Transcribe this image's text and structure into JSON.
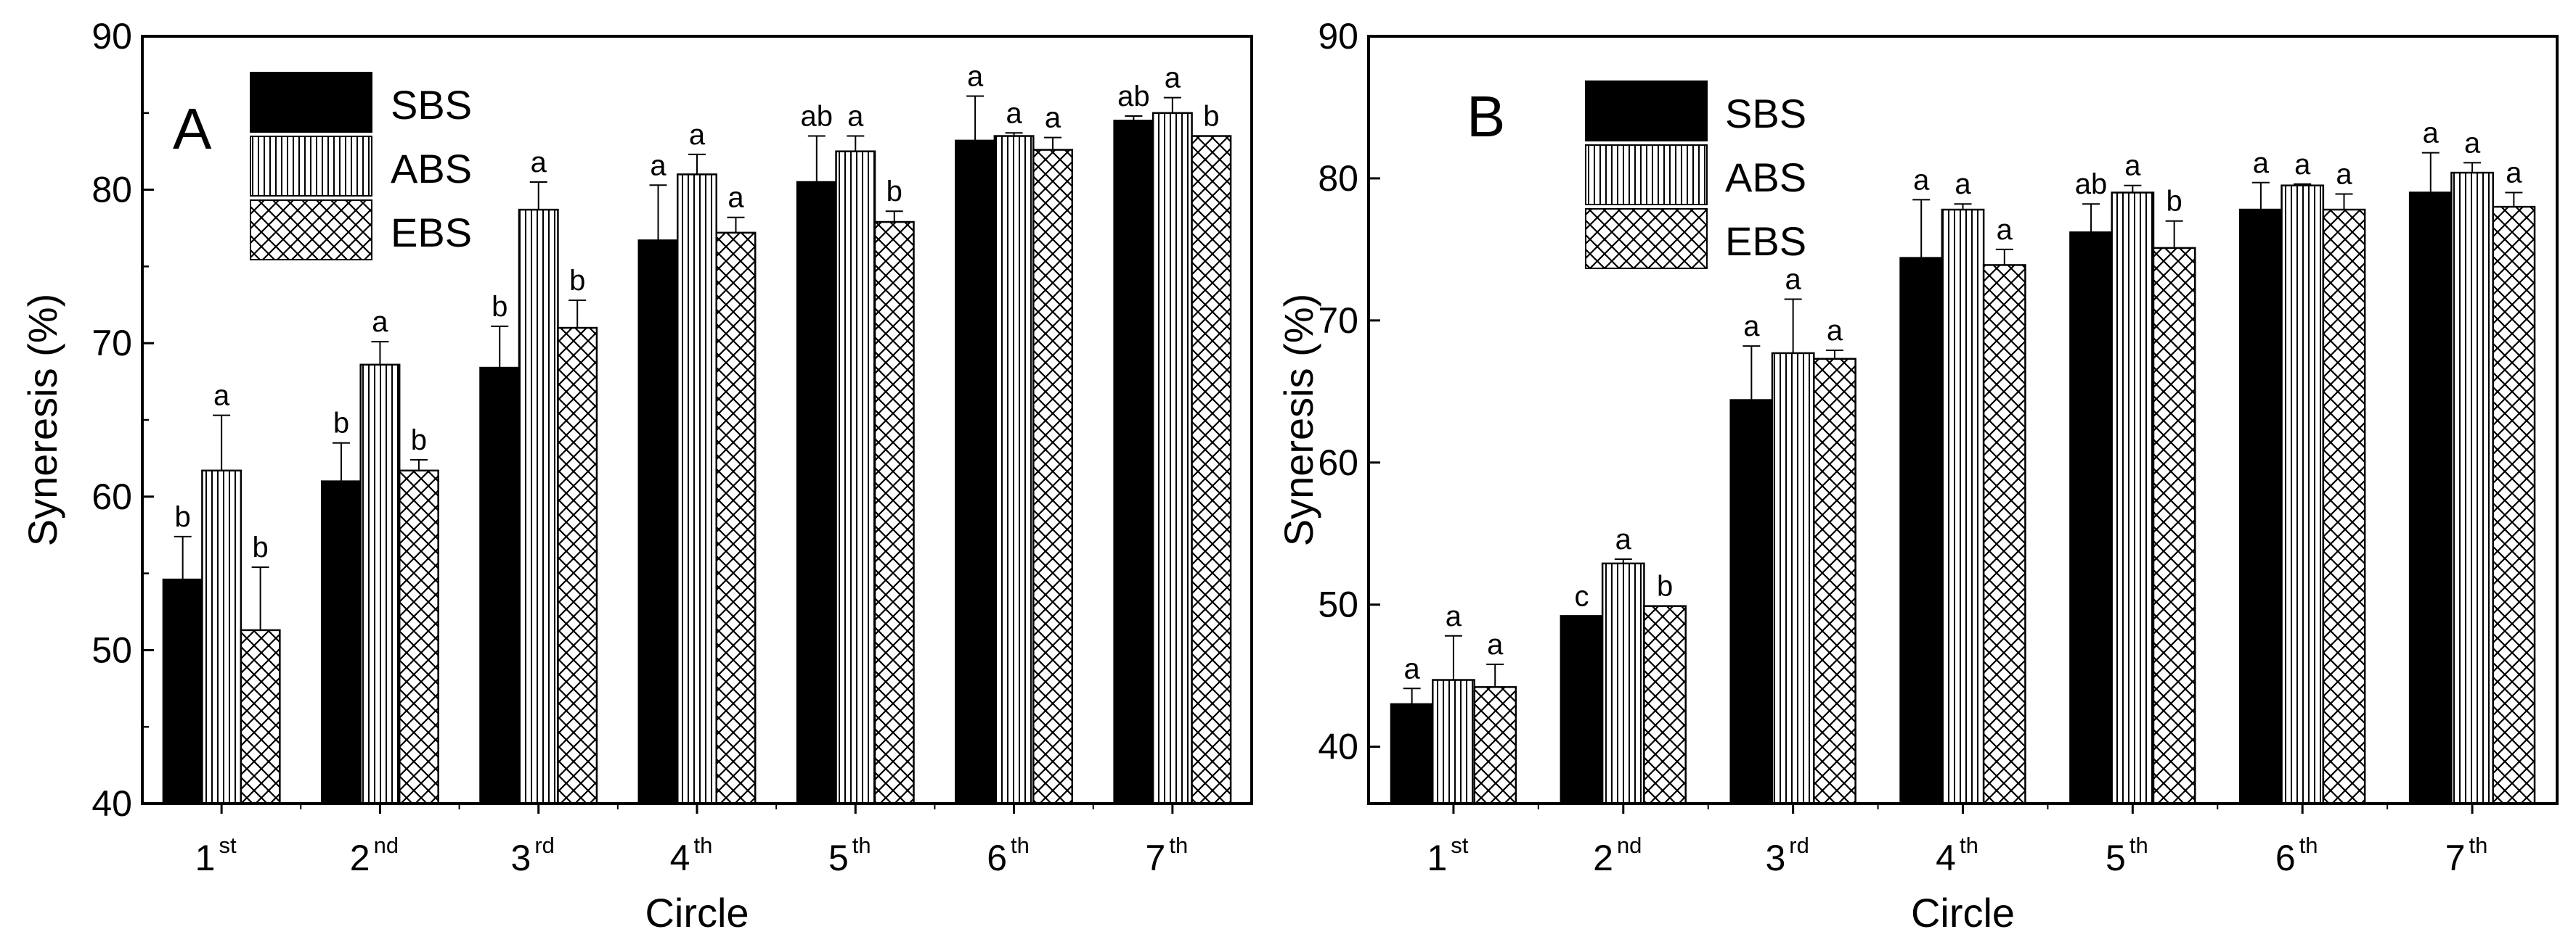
{
  "chart_data": [
    {
      "type": "bar",
      "panel": "A",
      "xlabel": "Circle",
      "ylabel": "Syneresis (%)",
      "ylim": [
        40,
        90
      ],
      "yticks": [
        40,
        50,
        60,
        70,
        80,
        90
      ],
      "categories": [
        {
          "num": "1",
          "suffix": "st"
        },
        {
          "num": "2",
          "suffix": "nd"
        },
        {
          "num": "3",
          "suffix": "rd"
        },
        {
          "num": "4",
          "suffix": "th"
        },
        {
          "num": "5",
          "suffix": "th"
        },
        {
          "num": "6",
          "suffix": "th"
        },
        {
          "num": "7",
          "suffix": "th"
        }
      ],
      "legend_position": "top-left",
      "grid": false,
      "series": [
        {
          "name": "SBS",
          "pattern": "solid",
          "values": [
            54.6,
            61.0,
            68.4,
            76.7,
            80.5,
            83.2,
            84.5
          ],
          "errors": [
            2.8,
            2.5,
            2.7,
            3.6,
            3.0,
            2.9,
            0.3
          ],
          "labels": [
            "b",
            "b",
            "b",
            "a",
            "ab",
            "a",
            "ab"
          ]
        },
        {
          "name": "ABS",
          "pattern": "vertical-lines",
          "values": [
            61.7,
            68.6,
            78.7,
            81.0,
            82.5,
            83.5,
            85.0
          ],
          "errors": [
            3.6,
            1.5,
            1.8,
            1.3,
            1.0,
            0.2,
            1.0
          ],
          "labels": [
            "a",
            "a",
            "a",
            "a",
            "a",
            "a",
            "a"
          ]
        },
        {
          "name": "EBS",
          "pattern": "crosshatch",
          "values": [
            51.3,
            61.7,
            71.0,
            77.2,
            77.9,
            82.6,
            83.5
          ],
          "errors": [
            4.1,
            0.7,
            1.8,
            1.0,
            0.7,
            0.8,
            0.0
          ],
          "labels": [
            "b",
            "b",
            "b",
            "a",
            "b",
            "a",
            "b"
          ]
        }
      ]
    },
    {
      "type": "bar",
      "panel": "B",
      "xlabel": "Circle",
      "ylabel": "Syneresis (%)",
      "ylim": [
        36,
        90
      ],
      "yticks": [
        40,
        50,
        60,
        70,
        80,
        90
      ],
      "categories": [
        {
          "num": "1",
          "suffix": "st"
        },
        {
          "num": "2",
          "suffix": "nd"
        },
        {
          "num": "3",
          "suffix": "rd"
        },
        {
          "num": "4",
          "suffix": "th"
        },
        {
          "num": "5",
          "suffix": "th"
        },
        {
          "num": "6",
          "suffix": "th"
        },
        {
          "num": "7",
          "suffix": "th"
        }
      ],
      "legend_position": "top-left",
      "grid": false,
      "series": [
        {
          "name": "SBS",
          "pattern": "solid",
          "values": [
            43.0,
            49.2,
            64.4,
            74.4,
            76.2,
            77.8,
            79.0
          ],
          "errors": [
            1.1,
            0.0,
            3.8,
            4.1,
            2.0,
            1.9,
            2.8
          ],
          "labels": [
            "a",
            "c",
            "a",
            "a",
            "ab",
            "a",
            "a"
          ]
        },
        {
          "name": "ABS",
          "pattern": "vertical-lines",
          "values": [
            44.7,
            52.9,
            67.7,
            77.8,
            79.0,
            79.5,
            80.4
          ],
          "errors": [
            3.1,
            0.3,
            3.8,
            0.4,
            0.5,
            0.1,
            0.7
          ],
          "labels": [
            "a",
            "a",
            "a",
            "a",
            "a",
            "a",
            "a"
          ]
        },
        {
          "name": "EBS",
          "pattern": "crosshatch",
          "values": [
            44.2,
            49.9,
            67.3,
            73.9,
            75.1,
            77.8,
            78.0
          ],
          "errors": [
            1.6,
            0.0,
            0.6,
            1.1,
            1.9,
            1.1,
            1.0
          ],
          "labels": [
            "a",
            "b",
            "a",
            "a",
            "b",
            "a",
            "a"
          ]
        }
      ]
    }
  ]
}
